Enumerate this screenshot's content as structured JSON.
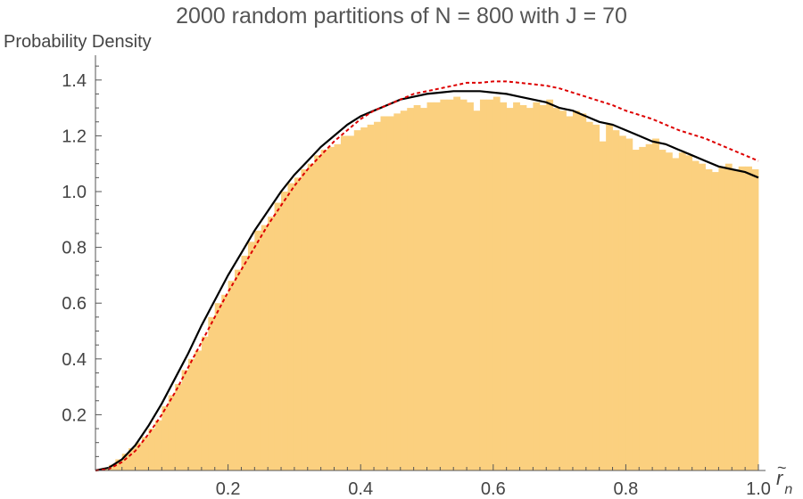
{
  "chart_data": {
    "type": "histogram",
    "title": "2000 random partitions of N = 800 with J = 70",
    "xlabel": "r",
    "xlabel_accent": "~",
    "xlabel_subscript": "n",
    "ylabel": "Probability Density",
    "xlim": [
      0.0,
      1.0
    ],
    "ylim": [
      0.0,
      1.45
    ],
    "x_ticks": [
      0.2,
      0.4,
      0.6,
      0.8,
      1.0
    ],
    "x_tick_labels": [
      "0.2",
      "0.4",
      "0.6",
      "0.8",
      "1.0"
    ],
    "y_ticks": [
      0.2,
      0.4,
      0.6,
      0.8,
      1.0,
      1.2,
      1.4
    ],
    "y_tick_labels": [
      "0.2",
      "0.4",
      "0.6",
      "0.8",
      "1.0",
      "1.2",
      "1.4"
    ],
    "grid": false,
    "bin_width": 0.01,
    "histogram_color": "#fbd07f",
    "histogram_values": [
      0.0,
      0.01,
      0.02,
      0.04,
      0.06,
      0.08,
      0.1,
      0.12,
      0.15,
      0.18,
      0.23,
      0.27,
      0.31,
      0.36,
      0.4,
      0.43,
      0.48,
      0.55,
      0.6,
      0.63,
      0.68,
      0.72,
      0.77,
      0.82,
      0.86,
      0.88,
      0.91,
      0.96,
      1.0,
      1.03,
      1.05,
      1.08,
      1.1,
      1.13,
      1.15,
      1.16,
      1.17,
      1.2,
      1.2,
      1.22,
      1.23,
      1.24,
      1.25,
      1.27,
      1.27,
      1.28,
      1.29,
      1.3,
      1.31,
      1.3,
      1.32,
      1.32,
      1.33,
      1.33,
      1.34,
      1.33,
      1.32,
      1.29,
      1.33,
      1.33,
      1.34,
      1.32,
      1.3,
      1.32,
      1.31,
      1.3,
      1.32,
      1.31,
      1.33,
      1.3,
      1.29,
      1.27,
      1.29,
      1.28,
      1.25,
      1.24,
      1.18,
      1.24,
      1.22,
      1.2,
      1.19,
      1.15,
      1.16,
      1.17,
      1.19,
      1.15,
      1.14,
      1.12,
      1.14,
      1.13,
      1.11,
      1.1,
      1.08,
      1.07,
      1.09,
      1.1,
      1.08,
      1.09,
      1.09,
      1.08
    ],
    "series": [
      {
        "style": "solid",
        "color": "#000000",
        "x": [
          0.0,
          0.02,
          0.04,
          0.06,
          0.08,
          0.1,
          0.12,
          0.14,
          0.16,
          0.18,
          0.2,
          0.22,
          0.24,
          0.26,
          0.28,
          0.3,
          0.32,
          0.34,
          0.36,
          0.38,
          0.4,
          0.42,
          0.44,
          0.46,
          0.48,
          0.5,
          0.52,
          0.54,
          0.56,
          0.58,
          0.6,
          0.62,
          0.64,
          0.66,
          0.68,
          0.7,
          0.72,
          0.74,
          0.76,
          0.78,
          0.8,
          0.82,
          0.84,
          0.86,
          0.88,
          0.9,
          0.92,
          0.94,
          0.96,
          0.98,
          1.0
        ],
        "y": [
          0.0,
          0.01,
          0.04,
          0.09,
          0.16,
          0.24,
          0.33,
          0.42,
          0.52,
          0.61,
          0.7,
          0.78,
          0.86,
          0.93,
          1.0,
          1.06,
          1.11,
          1.16,
          1.2,
          1.24,
          1.27,
          1.29,
          1.31,
          1.33,
          1.34,
          1.35,
          1.355,
          1.36,
          1.36,
          1.36,
          1.355,
          1.35,
          1.34,
          1.33,
          1.32,
          1.3,
          1.29,
          1.27,
          1.25,
          1.24,
          1.22,
          1.2,
          1.18,
          1.17,
          1.15,
          1.13,
          1.11,
          1.09,
          1.08,
          1.07,
          1.05
        ]
      },
      {
        "style": "dashed",
        "color": "#dd0000",
        "x": [
          0.0,
          0.02,
          0.04,
          0.06,
          0.08,
          0.1,
          0.12,
          0.14,
          0.16,
          0.18,
          0.2,
          0.22,
          0.24,
          0.26,
          0.28,
          0.3,
          0.32,
          0.34,
          0.36,
          0.38,
          0.4,
          0.42,
          0.44,
          0.46,
          0.48,
          0.5,
          0.52,
          0.54,
          0.56,
          0.58,
          0.6,
          0.62,
          0.64,
          0.66,
          0.68,
          0.7,
          0.72,
          0.74,
          0.76,
          0.78,
          0.8,
          0.82,
          0.84,
          0.86,
          0.88,
          0.9,
          0.92,
          0.94,
          0.96,
          0.98,
          1.0
        ],
        "y": [
          0.0,
          0.005,
          0.03,
          0.07,
          0.13,
          0.2,
          0.28,
          0.37,
          0.46,
          0.55,
          0.64,
          0.72,
          0.8,
          0.88,
          0.95,
          1.02,
          1.08,
          1.13,
          1.18,
          1.22,
          1.26,
          1.29,
          1.31,
          1.33,
          1.35,
          1.36,
          1.37,
          1.38,
          1.39,
          1.39,
          1.395,
          1.395,
          1.39,
          1.385,
          1.38,
          1.37,
          1.355,
          1.34,
          1.325,
          1.31,
          1.29,
          1.275,
          1.26,
          1.24,
          1.22,
          1.205,
          1.19,
          1.17,
          1.15,
          1.13,
          1.11
        ]
      }
    ]
  }
}
